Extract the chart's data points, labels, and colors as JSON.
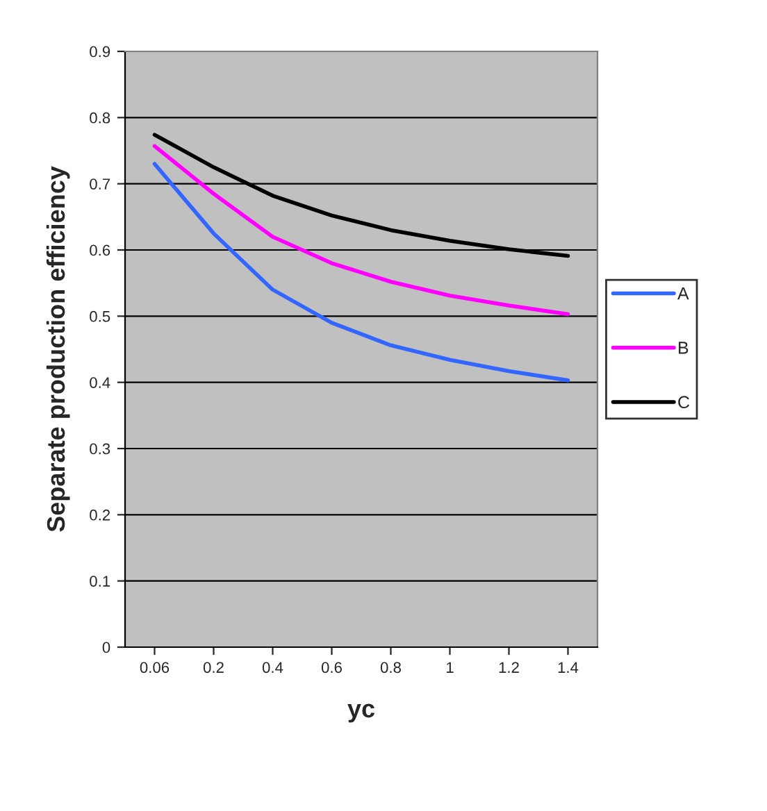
{
  "chart_data": {
    "type": "line",
    "xlabel": "yc",
    "ylabel": "Separate production efficiency",
    "categories": [
      "0.06",
      "0.2",
      "0.4",
      "0.6",
      "0.8",
      "1",
      "1.2",
      "1.4"
    ],
    "series": [
      {
        "name": "A",
        "color": "#3366ff",
        "values": [
          0.73,
          0.625,
          0.54,
          0.49,
          0.456,
          0.434,
          0.417,
          0.403
        ]
      },
      {
        "name": "B",
        "color": "#ff00ff",
        "values": [
          0.757,
          0.685,
          0.62,
          0.58,
          0.552,
          0.531,
          0.516,
          0.503
        ]
      },
      {
        "name": "C",
        "color": "#000000",
        "values": [
          0.774,
          0.725,
          0.682,
          0.652,
          0.63,
          0.614,
          0.601,
          0.591
        ]
      }
    ],
    "ylim": [
      0,
      0.9
    ],
    "yticks": [
      0,
      0.1,
      0.2,
      0.3,
      0.4,
      0.5,
      0.6,
      0.7,
      0.8,
      0.9
    ],
    "grid": "y",
    "legend": "right",
    "marker": "none",
    "line_style": "solid"
  }
}
